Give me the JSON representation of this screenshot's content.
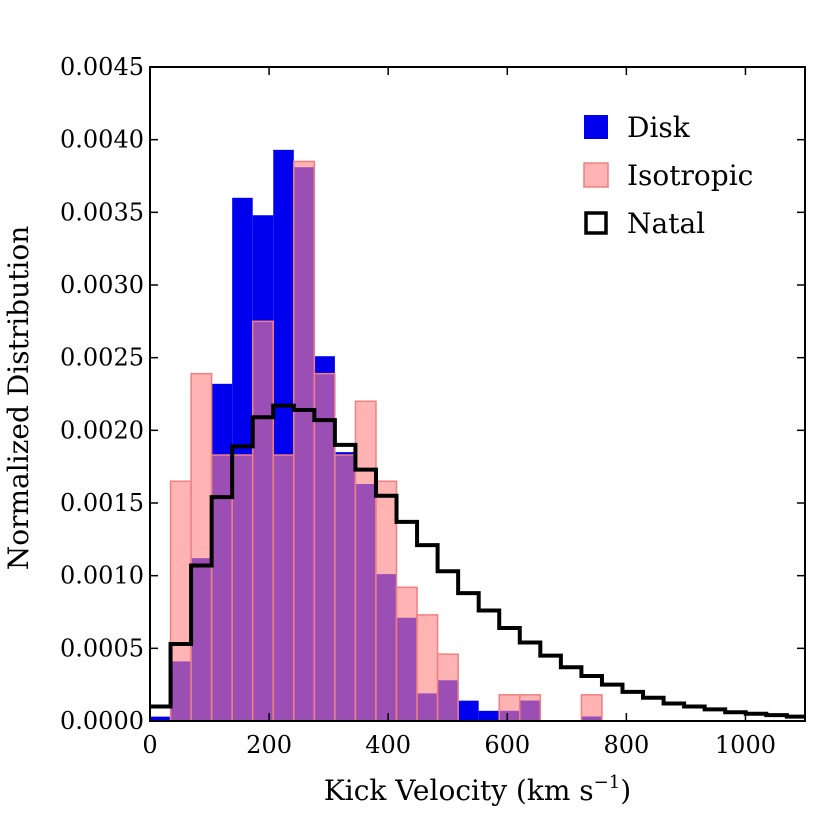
{
  "chart_data": {
    "type": "bar",
    "title": "",
    "xlabel": "Kick Velocity (km s",
    "xlabel_sup": "−1",
    "xlabel_end": ")",
    "ylabel": "Normalized Distribution",
    "xlim": [
      0,
      1100
    ],
    "ylim": [
      0,
      0.0045
    ],
    "x_ticks": [
      0,
      200,
      400,
      600,
      800,
      1000
    ],
    "x_tick_labels": [
      "0",
      "200",
      "400",
      "600",
      "800",
      "1000"
    ],
    "y_ticks": [
      0,
      0.0005,
      0.001,
      0.0015,
      0.002,
      0.0025,
      0.003,
      0.0035,
      0.004,
      0.0045
    ],
    "y_tick_labels": [
      "0.0000",
      "0.0005",
      "0.0010",
      "0.0015",
      "0.0020",
      "0.0025",
      "0.0030",
      "0.0035",
      "0.0040",
      "0.0045"
    ],
    "bin_width": 34.5,
    "bin_edges_start": 0,
    "series": [
      {
        "name": "Disk",
        "kind": "hist-filled",
        "color": "#0000ee",
        "values": [
          3e-05,
          0.00041,
          0.00112,
          0.00232,
          0.0036,
          0.00348,
          0.00393,
          0.00381,
          0.00251,
          0.00185,
          0.00163,
          0.00101,
          0.00071,
          0.00019,
          0.00028,
          0.00014,
          7e-05,
          7e-05,
          0.00014,
          0,
          0,
          3e-05
        ]
      },
      {
        "name": "Isotropic",
        "kind": "hist-filled",
        "color": "#ff9999",
        "edge_color": "#f08080",
        "values": [
          0,
          0.00165,
          0.00239,
          0.00183,
          0.00183,
          0.00275,
          0.00183,
          0.00385,
          0.00239,
          0.00183,
          0.0022,
          0.00165,
          0.00092,
          0.00073,
          0.00046,
          0,
          0,
          0.00018,
          0.00018,
          0,
          0,
          0.00018
        ]
      },
      {
        "name": "Natal",
        "kind": "hist-step",
        "color": "#000000",
        "values": [
          0.0001,
          0.00053,
          0.00107,
          0.00154,
          0.00189,
          0.00209,
          0.00217,
          0.00214,
          0.00207,
          0.0019,
          0.00173,
          0.00155,
          0.00137,
          0.00121,
          0.00103,
          0.00088,
          0.00076,
          0.00064,
          0.00054,
          0.00045,
          0.00037,
          0.00031,
          0.00025,
          0.0002,
          0.00016,
          0.00012,
          0.0001,
          8e-05,
          6e-05,
          5e-05,
          4e-05,
          3e-05
        ]
      }
    ],
    "legend": {
      "placement": "top-right",
      "items": [
        "Disk",
        "Isotropic",
        "Natal"
      ]
    },
    "overlap_color": "#9b4fb5",
    "grid": false
  }
}
